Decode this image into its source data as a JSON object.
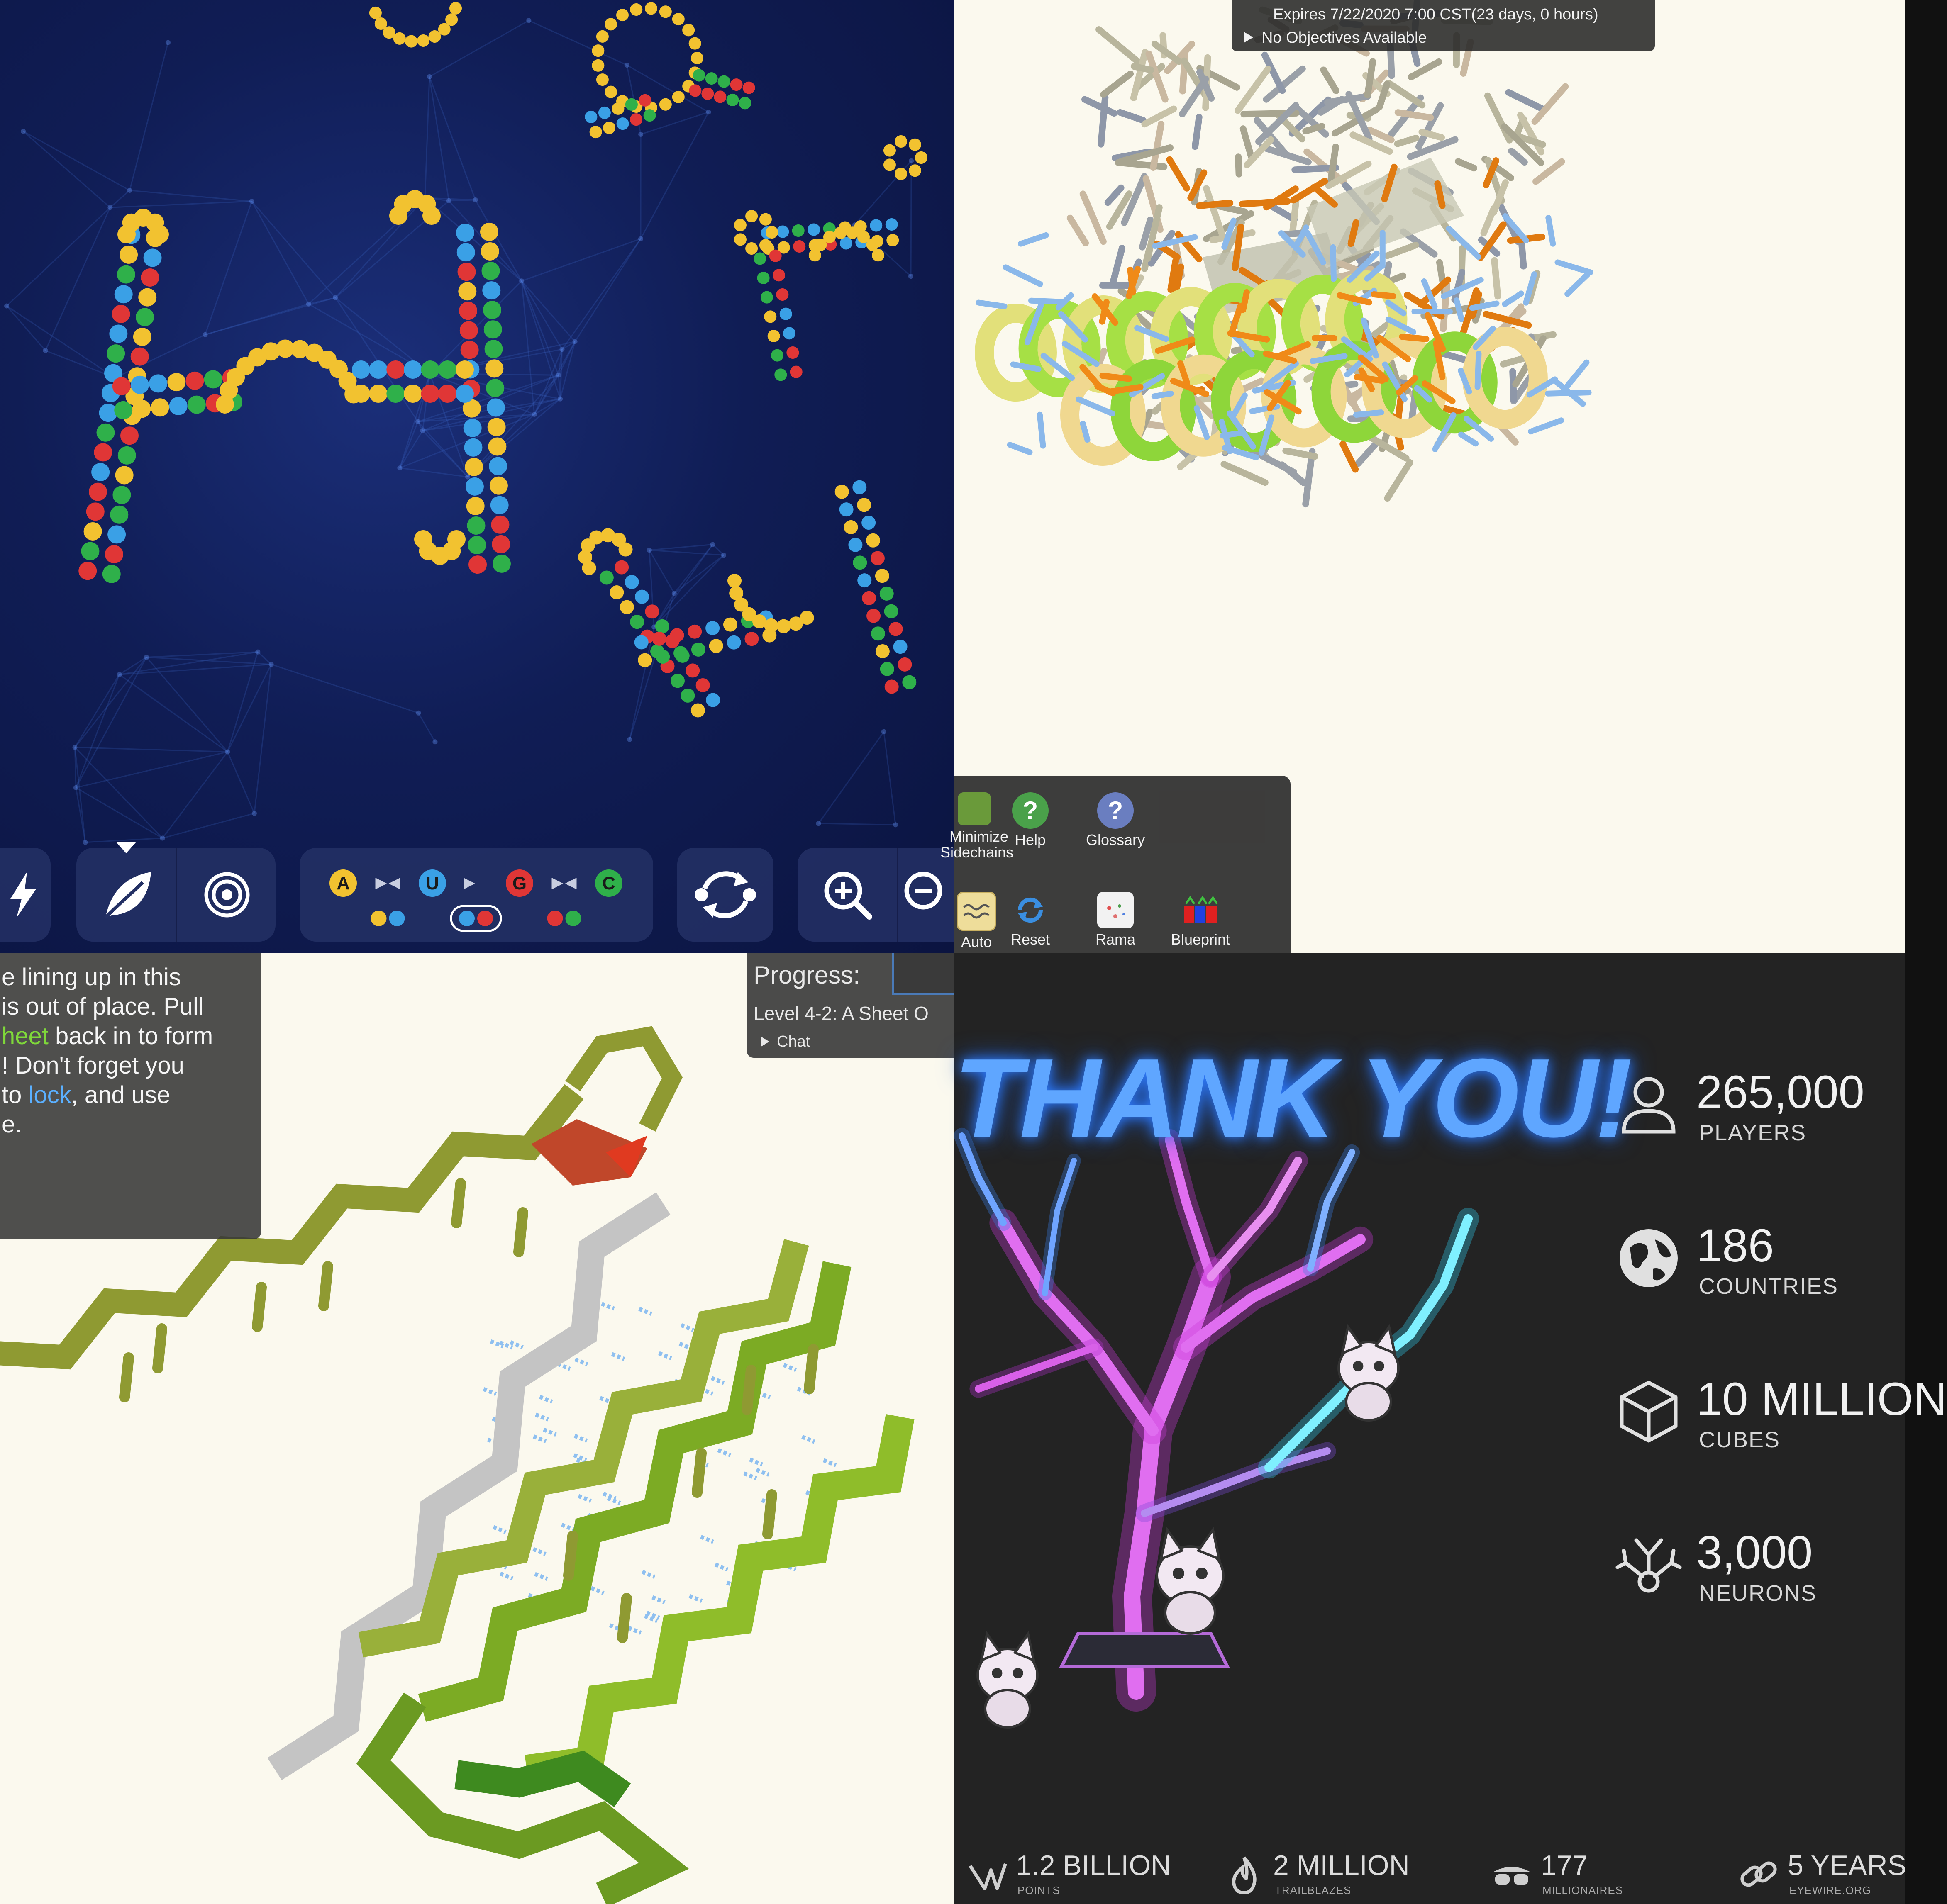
{
  "eterna": {
    "toolbar": {
      "pairs": [
        {
          "a": "A",
          "b": "U",
          "a_color": "#f2c230",
          "b_color": "#3aa0e6"
        },
        {
          "a": "G",
          "b": "C",
          "a_color": "#e03636",
          "b_color": "#2fb04a"
        }
      ],
      "icons": [
        "lightning-icon",
        "leaf-icon",
        "target-icon",
        "swap-pair-icon",
        "refresh-icon",
        "zoom-in-icon",
        "zoom-out-icon"
      ]
    },
    "nucleotide_colors": {
      "A": "#f2c230",
      "U": "#3aa0e6",
      "G": "#e03636",
      "C": "#2fb04a"
    }
  },
  "foldit_top": {
    "objective": {
      "expires": "Expires 7/22/2020 7:00 CST(23 days, 0 hours)",
      "objectives": "No Objectives Available"
    },
    "tools": [
      {
        "label_line1": "Minimize",
        "label_line2": "Sidechains"
      },
      {
        "label_line1": "Help",
        "label_line2": ""
      },
      {
        "label_line1": "Glossary",
        "label_line2": ""
      },
      {
        "label_line1": "Auto",
        "label_line2": ""
      },
      {
        "label_line1": "Reset",
        "label_line2": ""
      },
      {
        "label_line1": "Rama",
        "label_line2": ""
      },
      {
        "label_line1": "Blueprint",
        "label_line2": ""
      }
    ]
  },
  "foldit_bottom": {
    "tutorial": {
      "line1": "e lining up in this",
      "line2": "is out of place.  Pull",
      "line3_highlight": "heet",
      "line3_rest": " back in to form",
      "line4": "!  Don't forget you",
      "line5_pre": "to ",
      "line5_link": "lock",
      "line5_post": ", and use",
      "line6": "e."
    },
    "progress": {
      "label": "Progress:",
      "level": "Level 4-2: A Sheet O",
      "chat": "Chat"
    }
  },
  "eyewire": {
    "headline": "THANK YOU!",
    "stats": [
      {
        "value": "265,000",
        "label": "PLAYERS",
        "icon": "person-icon"
      },
      {
        "value": "186",
        "label": "COUNTRIES",
        "icon": "globe-icon"
      },
      {
        "value": "10 MILLION",
        "label": "CUBES",
        "icon": "cube-icon"
      },
      {
        "value": "3,000",
        "label": "NEURONS",
        "icon": "neuron-icon"
      }
    ],
    "bottom_stats": [
      {
        "value": "1.2 BILLION",
        "label": "POINTS",
        "icon": "points-icon"
      },
      {
        "value": "2 MILLION",
        "label": "TRAILBLAZES",
        "icon": "flame-icon"
      },
      {
        "value": "177",
        "label": "MILLIONAIRES",
        "icon": "sunglasses-icon"
      },
      {
        "value": "5 YEARS",
        "label": "EYEWIRE.ORG",
        "icon": "chain-icon"
      }
    ]
  }
}
